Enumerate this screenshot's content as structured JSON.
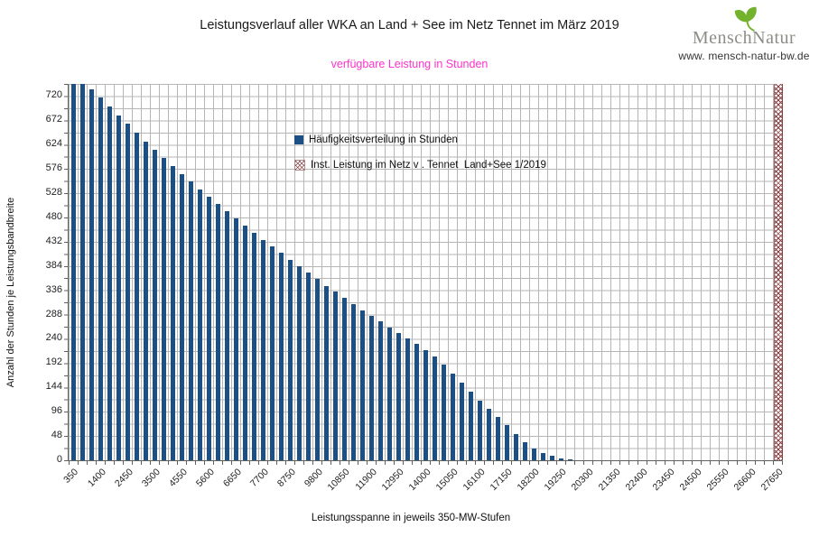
{
  "header": {
    "title": "Leistungsverlauf aller WKA an Land + See im Netz Tennet im März 2019",
    "subtitle": "verfügbare Leistung in Stunden",
    "subtitle_color": "#ff33cc"
  },
  "logo": {
    "word_left": "Mensch",
    "word_right": "Natur",
    "url": "www. mensch-natur-bw.de",
    "leaf_icon": "ginkgo-leaf",
    "leaf_color": "#72b22c",
    "text_color": "#8d8d87"
  },
  "chart_data": {
    "type": "bar",
    "title": "Leistungsverlauf aller WKA an Land + See im Netz Tennet im März 2019",
    "subtitle": "verfügbare Leistung in Stunden",
    "xlabel": "Leistungsspanne in jeweils 350-MW-Stufen",
    "ylabel": "Anzahl der Stunden je Leistungsbandbreite",
    "ylim": [
      0,
      744
    ],
    "ytick_step": 48,
    "minor_grid_step_y": 24,
    "bin_width_mw": 350,
    "xtick_label_every": 3,
    "grid": "on",
    "legend_position": "upper-middle-inside",
    "bar_color": "#1c5084",
    "hatch_color": "#8b4044",
    "categories": [
      350,
      700,
      1050,
      1400,
      1750,
      2100,
      2450,
      2800,
      3150,
      3500,
      3850,
      4200,
      4550,
      4900,
      5250,
      5600,
      5950,
      6300,
      6650,
      7000,
      7350,
      7700,
      8050,
      8400,
      8750,
      9100,
      9450,
      9800,
      10150,
      10500,
      10850,
      11200,
      11550,
      11900,
      12250,
      12600,
      12950,
      13300,
      13650,
      14000,
      14350,
      14700,
      15050,
      15400,
      15750,
      16100,
      16450,
      16800,
      17150,
      17500,
      17850,
      18200,
      18550,
      18900,
      19250,
      19600,
      19950,
      20300,
      20650,
      21000,
      21350,
      21700,
      22050,
      22400,
      22750,
      23100,
      23450,
      23800,
      24150,
      24500,
      24850,
      25200,
      25550,
      25900,
      26250,
      26600,
      26950,
      27300,
      27650
    ],
    "series": [
      {
        "name": "Häufigkeitsverteilung in Stunden",
        "type": "bar",
        "color": "#1c5084",
        "values": [
          744,
          744,
          734,
          717,
          700,
          682,
          666,
          647,
          630,
          614,
          598,
          582,
          566,
          551,
          536,
          521,
          506,
          492,
          478,
          464,
          450,
          436,
          423,
          410,
          397,
          384,
          371,
          358,
          345,
          333,
          321,
          309,
          297,
          285,
          274,
          263,
          252,
          241,
          230,
          218,
          205,
          190,
          172,
          153,
          135,
          118,
          102,
          86,
          70,
          52,
          36,
          24,
          15,
          9,
          4,
          2,
          0,
          0,
          0,
          0,
          0,
          0,
          0,
          0,
          0,
          0,
          0,
          0,
          0,
          0,
          0,
          0,
          0,
          0,
          0,
          0,
          0,
          0,
          0
        ]
      },
      {
        "name": "Inst. Leistung im Netz v . Tennet  Land+See 1/2019",
        "type": "bar",
        "pattern": "crosshatch",
        "color": "#8b4044",
        "values": [
          0,
          0,
          0,
          0,
          0,
          0,
          0,
          0,
          0,
          0,
          0,
          0,
          0,
          0,
          0,
          0,
          0,
          0,
          0,
          0,
          0,
          0,
          0,
          0,
          0,
          0,
          0,
          0,
          0,
          0,
          0,
          0,
          0,
          0,
          0,
          0,
          0,
          0,
          0,
          0,
          0,
          0,
          0,
          0,
          0,
          0,
          0,
          0,
          0,
          0,
          0,
          0,
          0,
          0,
          0,
          0,
          0,
          0,
          0,
          0,
          0,
          0,
          0,
          0,
          0,
          0,
          0,
          0,
          0,
          0,
          0,
          0,
          0,
          0,
          0,
          0,
          0,
          0,
          744
        ]
      }
    ]
  }
}
